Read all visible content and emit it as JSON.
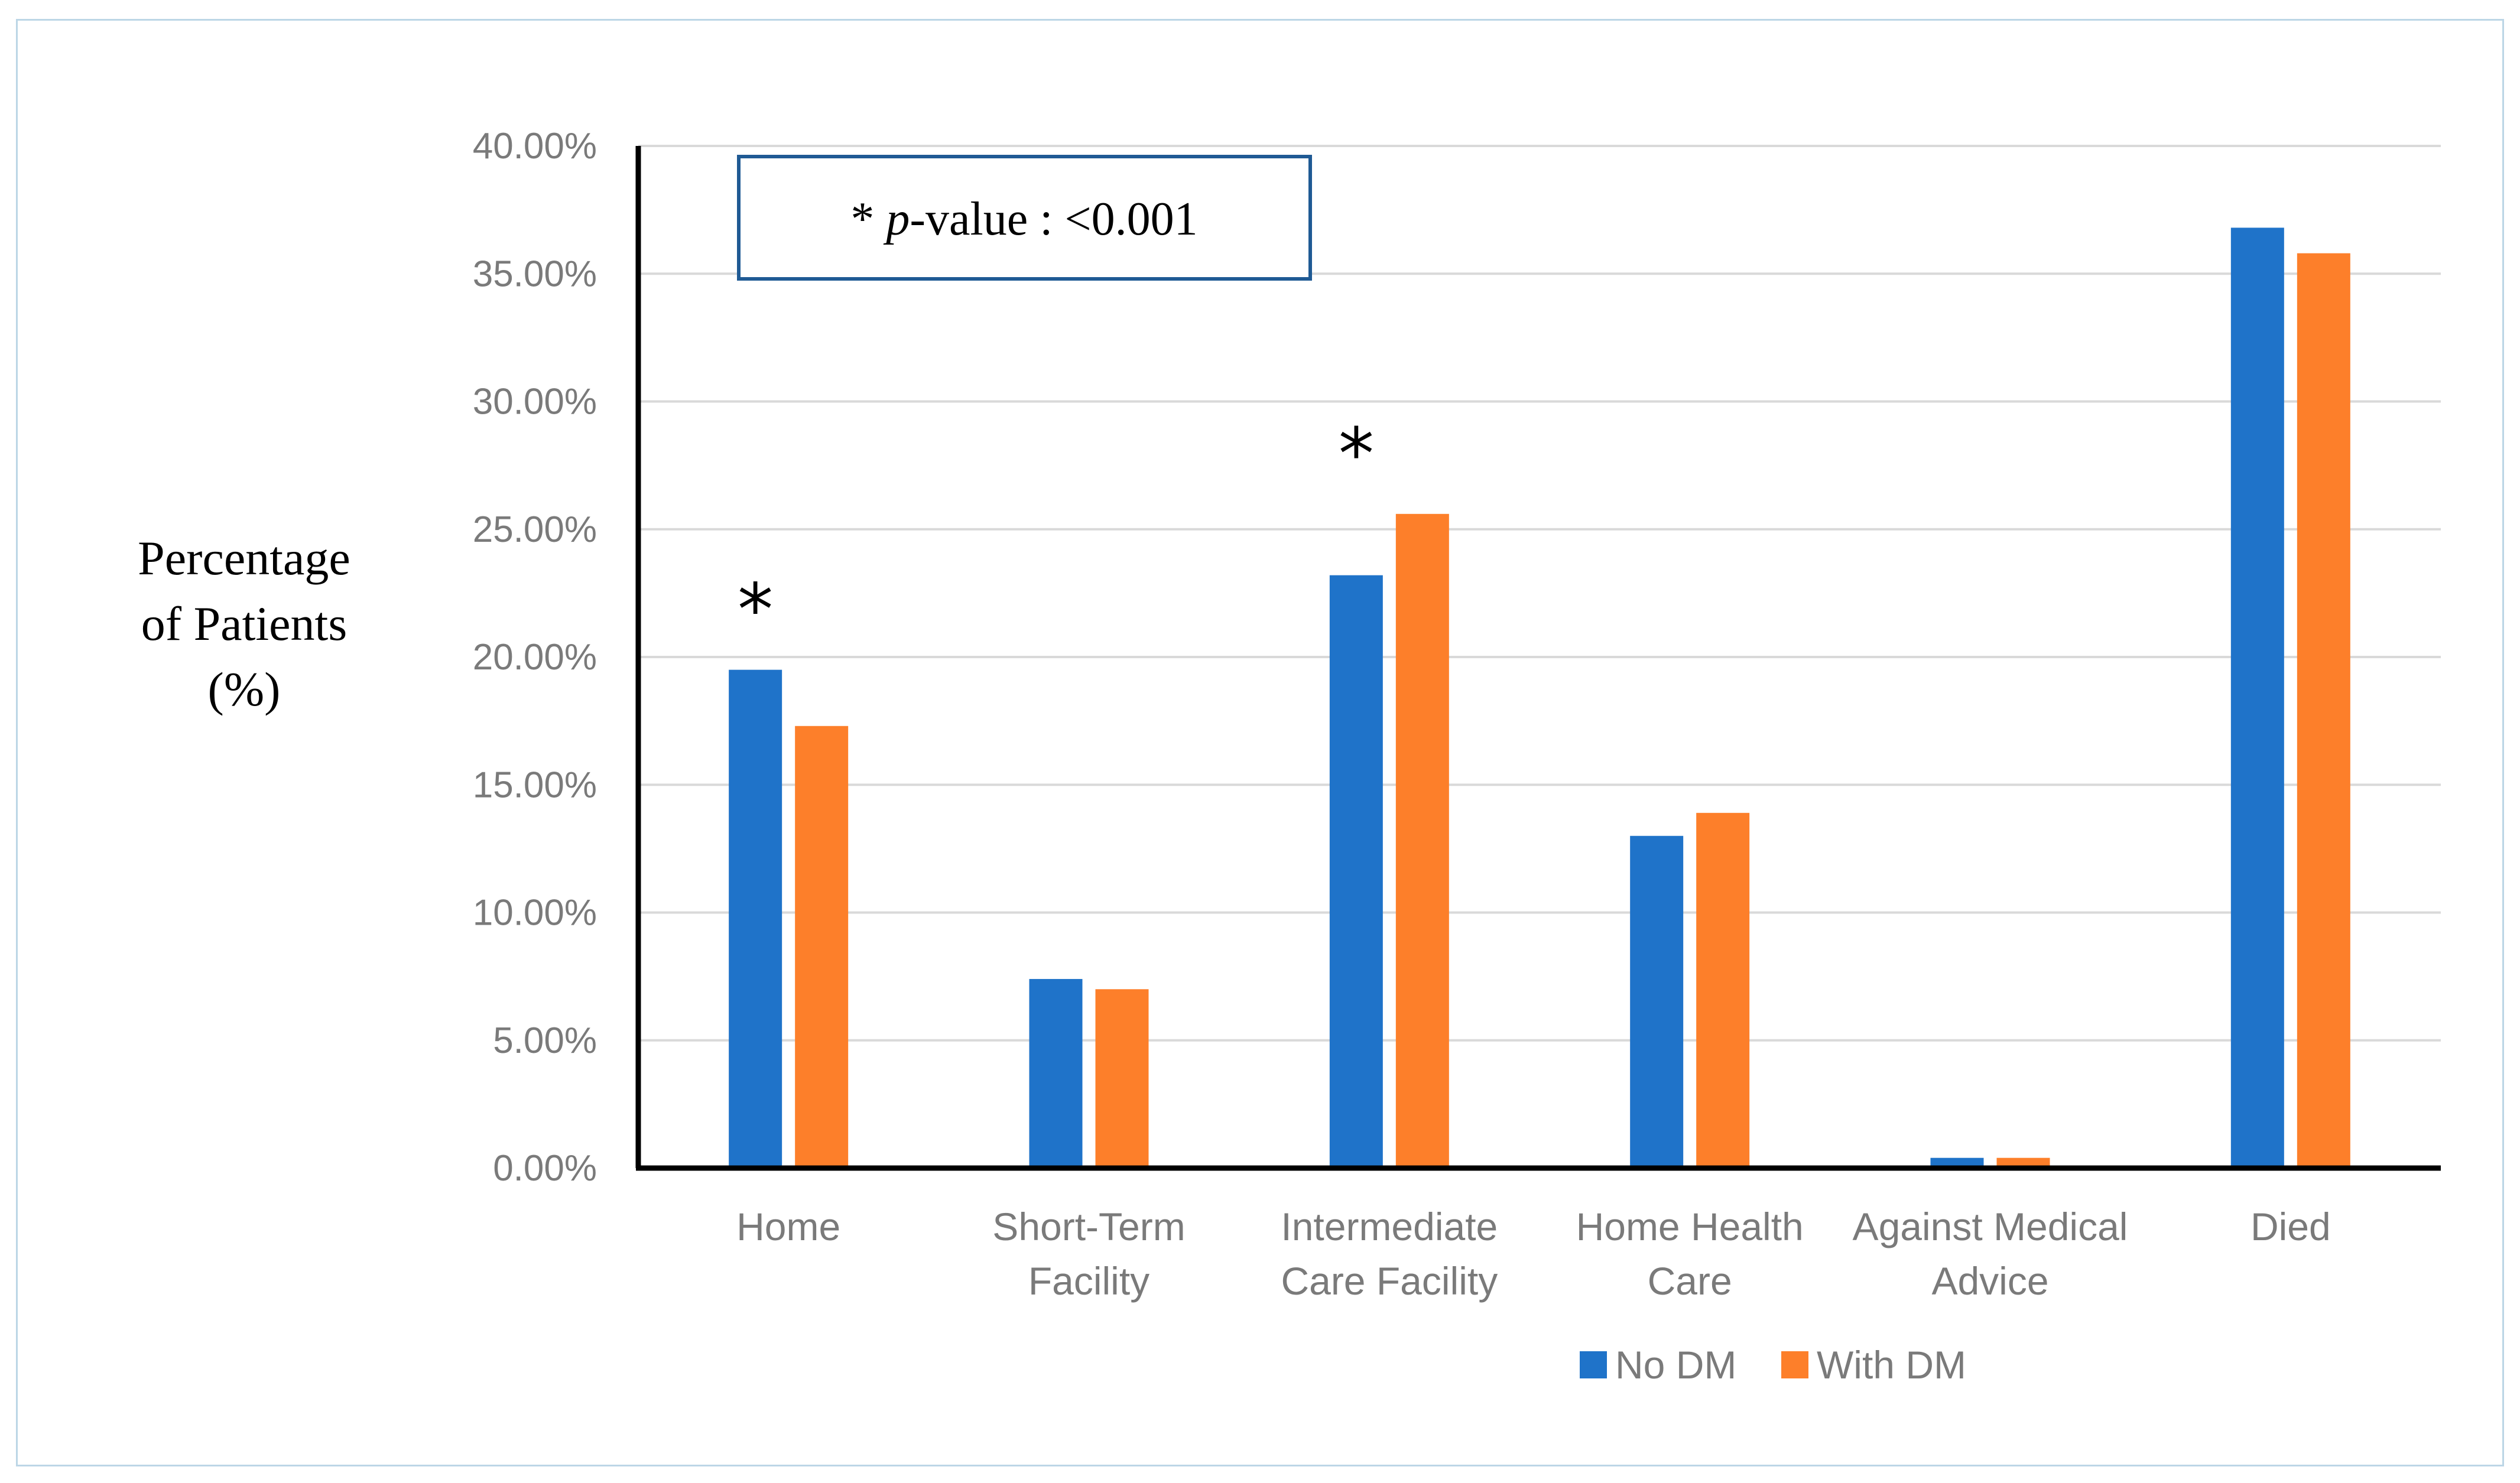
{
  "chart_data": {
    "type": "bar",
    "title": "",
    "xlabel": "",
    "ylabel": [
      "Percentage",
      "of Patients",
      "(%)"
    ],
    "ylim": [
      0,
      40
    ],
    "yticks": [
      0,
      5,
      10,
      15,
      20,
      25,
      30,
      35,
      40
    ],
    "ytick_labels": [
      "0.00%",
      "5.00%",
      "10.00%",
      "15.00%",
      "20.00%",
      "25.00%",
      "30.00%",
      "35.00%",
      "40.00%"
    ],
    "grid": true,
    "categories": [
      [
        "Home"
      ],
      [
        "Short-Term",
        "Facility"
      ],
      [
        "Intermediate",
        "Care Facility"
      ],
      [
        "Home Health",
        "Care"
      ],
      [
        "Against Medical",
        "Advice"
      ],
      [
        "Died"
      ]
    ],
    "series": [
      {
        "name": "No DM",
        "color": "#1f73c9",
        "values": [
          19.5,
          7.4,
          23.2,
          13.0,
          0.4,
          36.8
        ]
      },
      {
        "name": "With DM",
        "color": "#fd7f2a",
        "values": [
          17.3,
          7.0,
          25.6,
          13.9,
          0.4,
          35.8
        ]
      }
    ],
    "significance_markers": [
      {
        "category_index": 0,
        "symbol": "*"
      },
      {
        "category_index": 2,
        "symbol": "*"
      }
    ],
    "annotation": {
      "star": "*",
      "p_letter": "p",
      "rest": "-value : <0.001"
    },
    "legend_position": "bottom-center"
  }
}
